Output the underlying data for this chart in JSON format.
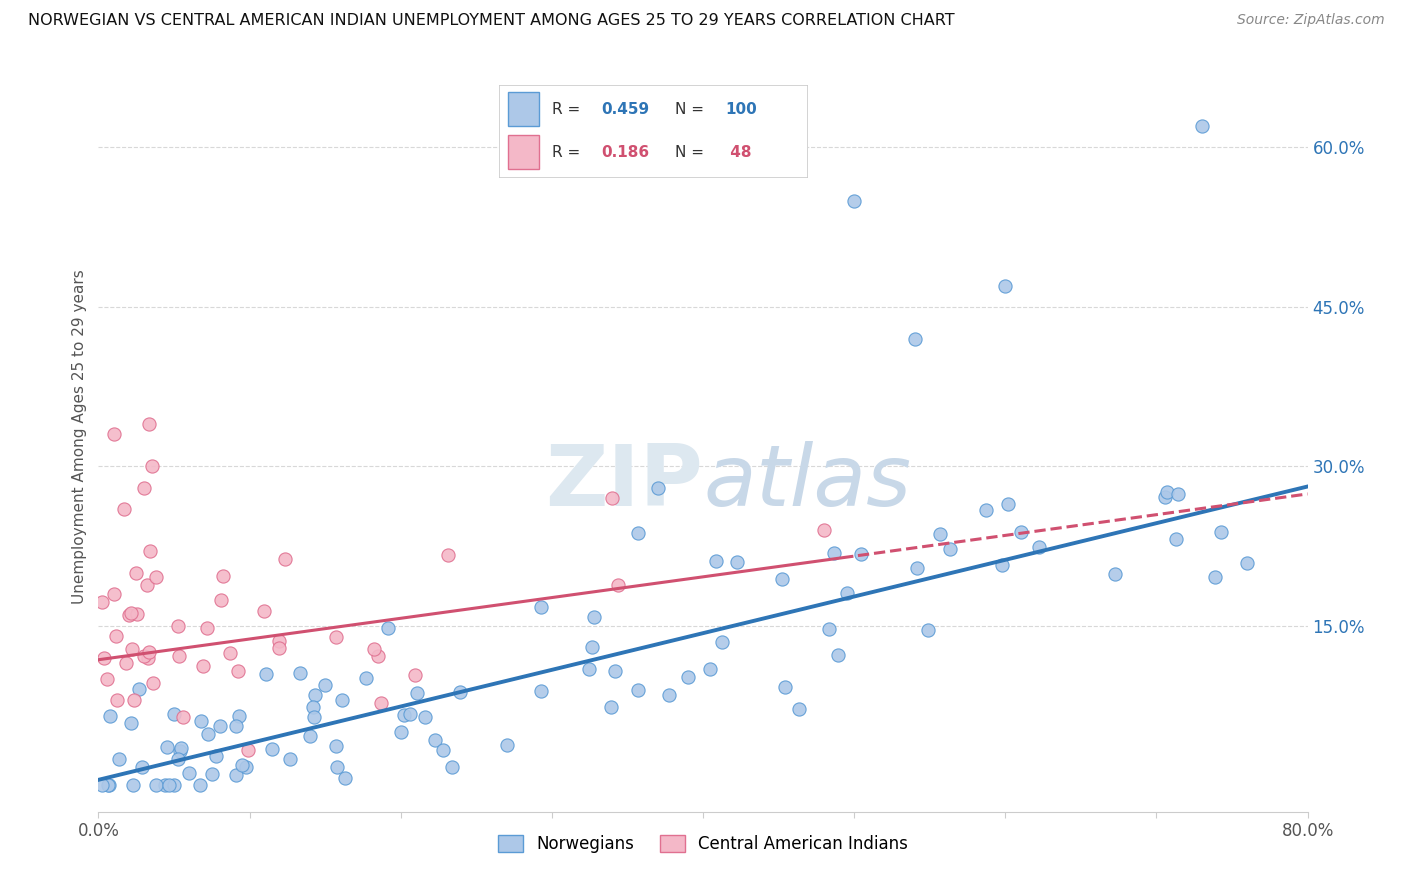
{
  "title": "NORWEGIAN VS CENTRAL AMERICAN INDIAN UNEMPLOYMENT AMONG AGES 25 TO 29 YEARS CORRELATION CHART",
  "source": "Source: ZipAtlas.com",
  "ylabel": "Unemployment Among Ages 25 to 29 years",
  "xlim": [
    0.0,
    0.8
  ],
  "ylim": [
    -0.025,
    0.68
  ],
  "yticks_right": [
    0.15,
    0.3,
    0.45,
    0.6
  ],
  "ytick_right_labels": [
    "15.0%",
    "30.0%",
    "45.0%",
    "60.0%"
  ],
  "color_norwegian": "#adc8e8",
  "color_norwegian_edge": "#5b9bd5",
  "color_norwegian_line": "#2e75b6",
  "color_cai": "#f4b8c8",
  "color_cai_edge": "#e07090",
  "color_cai_line": "#d05070",
  "color_r_nor": "#2e75b6",
  "color_r_cai": "#d05070",
  "background_color": "#ffffff",
  "grid_color": "#d8d8d8",
  "watermark_color": "#dde8f0",
  "nor_line_intercept": 0.005,
  "nor_line_slope": 0.345,
  "cai_line_intercept": 0.118,
  "cai_line_slope": 0.195
}
